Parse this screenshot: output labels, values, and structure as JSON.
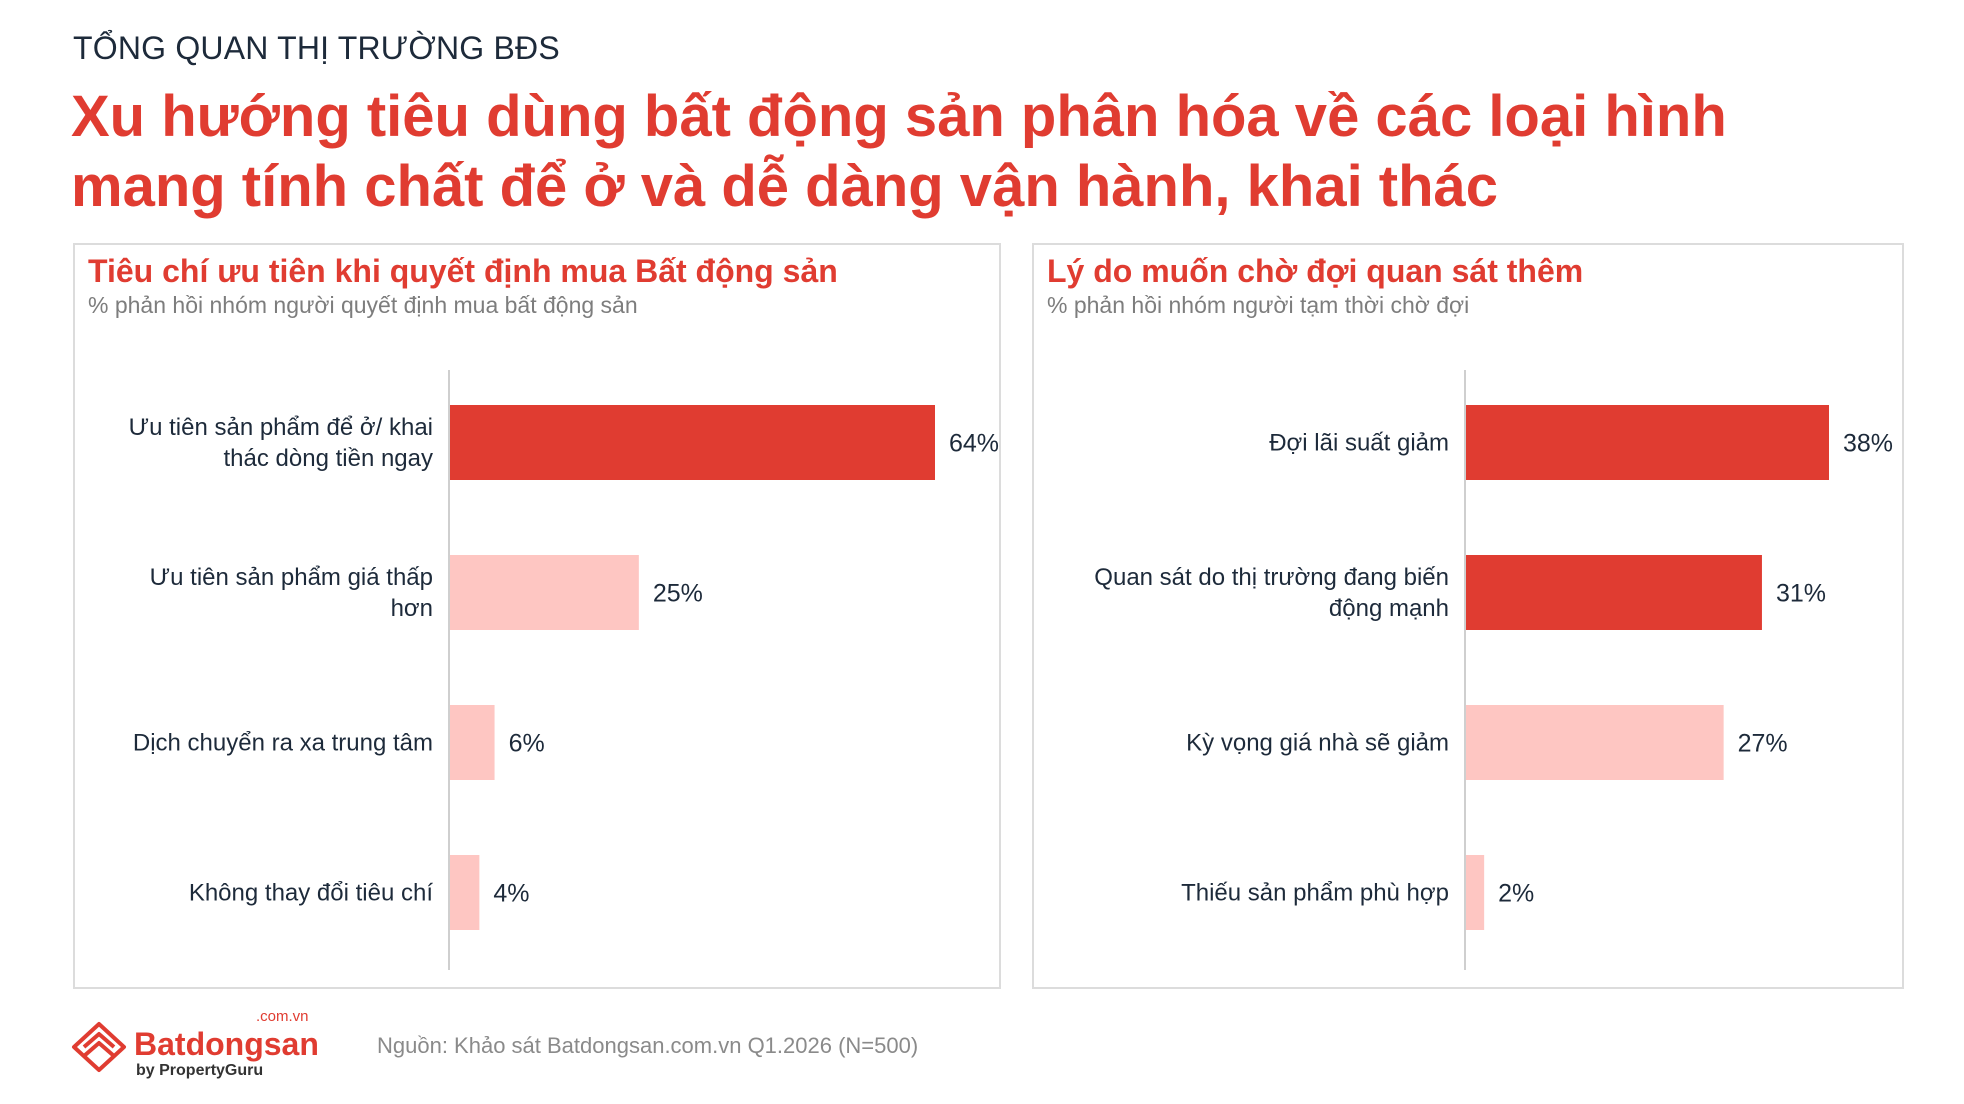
{
  "header": {
    "kicker": "TỔNG QUAN THỊ TRƯỜNG BĐS",
    "headline_line1": "Xu hướng tiêu dùng bất động sản phân hóa về các loại hình",
    "headline_line2": "mang tính chất để ở và dễ dàng vận hành, khai thác"
  },
  "colors": {
    "accent": "#e03c31",
    "light": "#fec6c2",
    "axis": "#cfcfcf"
  },
  "chart_data": [
    {
      "type": "bar",
      "orientation": "horizontal",
      "title": "Tiêu chí ưu tiên khi quyết định mua Bất động sản",
      "subtitle": "% phản hồi nhóm người quyết định mua bất động sản",
      "categories": [
        [
          "Ưu tiên sản phẩm để ở/ khai",
          "thác dòng tiền ngay"
        ],
        [
          "Ưu tiên sản phẩm giá thấp",
          "hơn"
        ],
        [
          "Dịch chuyển ra xa trung tâm"
        ],
        [
          "Không thay đổi tiêu chí"
        ]
      ],
      "values": [
        64,
        25,
        6,
        4
      ],
      "value_labels": [
        "64%",
        "25%",
        "6%",
        "4%"
      ],
      "highlight": [
        true,
        false,
        false,
        false
      ],
      "unit": "%",
      "xlim": [
        0,
        64
      ],
      "grid": false
    },
    {
      "type": "bar",
      "orientation": "horizontal",
      "title": "Lý do muốn chờ đợi quan sát thêm",
      "subtitle": "% phản hồi nhóm người tạm thời chờ đợi",
      "categories": [
        [
          "Đợi lãi suất giảm"
        ],
        [
          "Quan sát do thị trường đang biến",
          "động mạnh"
        ],
        [
          "Kỳ vọng giá nhà sẽ giảm"
        ],
        [
          "Thiếu sản phẩm phù hợp"
        ]
      ],
      "values": [
        38,
        31,
        27,
        2
      ],
      "value_labels": [
        "38%",
        "31%",
        "27%",
        "2%"
      ],
      "highlight": [
        true,
        true,
        false,
        false
      ],
      "unit": "%",
      "xlim": [
        0,
        38
      ],
      "grid": false
    }
  ],
  "footer": {
    "logo_name": "Batdongsan",
    "logo_domain": ".com.vn",
    "logo_by": "by PropertyGuru",
    "source": "Nguồn: Khảo sát Batdongsan.com.vn Q1.2026 (N=500)"
  }
}
